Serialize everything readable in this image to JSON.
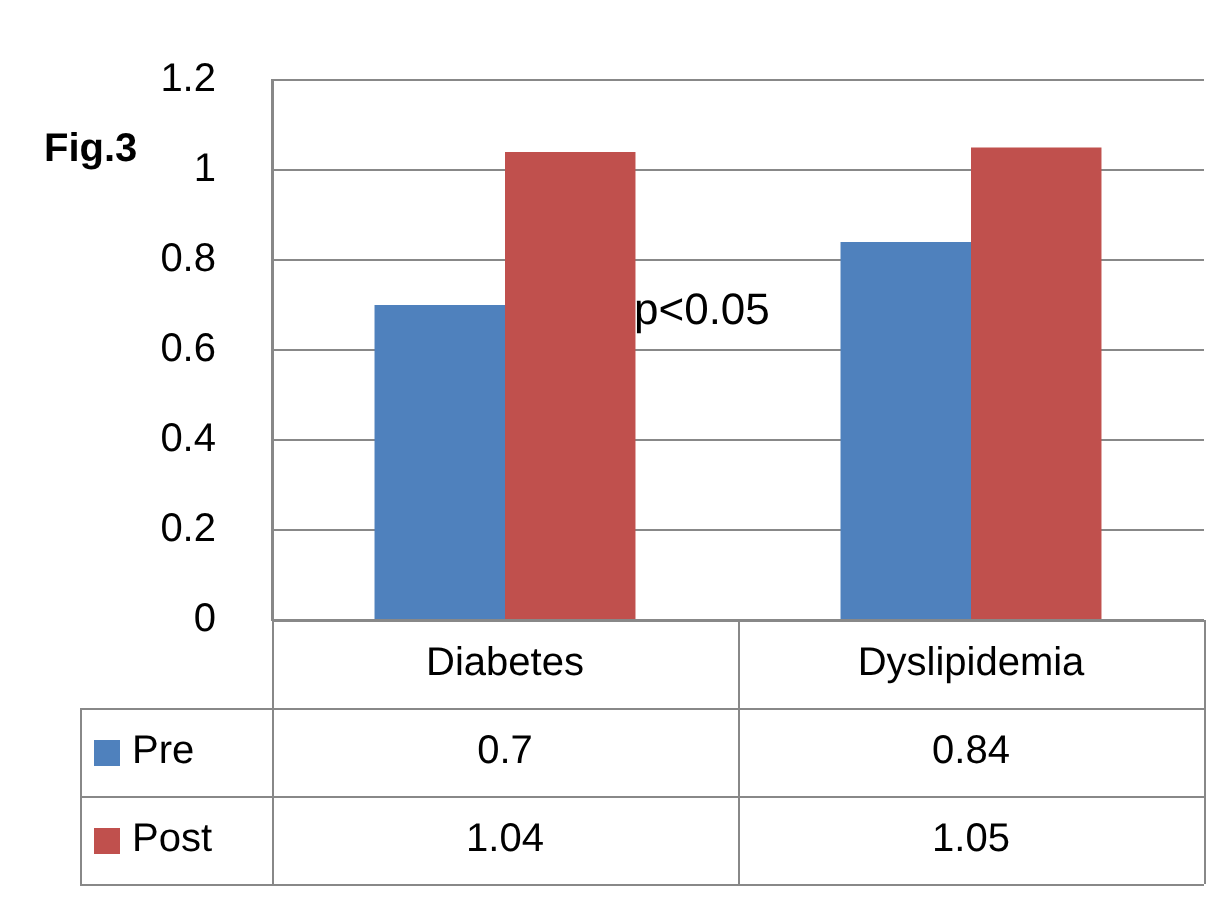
{
  "chart_data": {
    "type": "bar",
    "title": "Fig.3",
    "categories": [
      "Diabetes",
      "Dyslipidemia"
    ],
    "series": [
      {
        "name": "Pre",
        "color": "#4f81bd",
        "values": [
          0.7,
          0.84
        ]
      },
      {
        "name": "Post",
        "color": "#c0504d",
        "values": [
          1.04,
          1.05
        ]
      }
    ],
    "ylim": [
      0,
      1.2
    ],
    "yticks": [
      0,
      0.2,
      0.4,
      0.6,
      0.8,
      1,
      1.2
    ],
    "grid": "y",
    "legend": "bottom",
    "data_labels": true,
    "annotations": [
      "p<0.05"
    ]
  }
}
